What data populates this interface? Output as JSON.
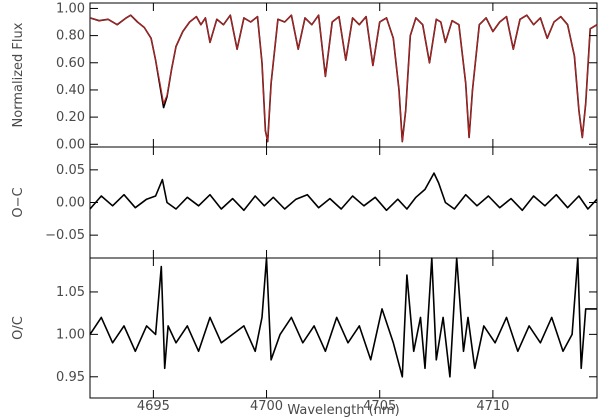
{
  "chart_data": [
    {
      "panel": "spectrum",
      "type": "line",
      "xlabel": "",
      "ylabel": "Normalized Flux",
      "xlim": [
        4692.2,
        4714.6
      ],
      "ylim": [
        -0.02,
        1.04
      ],
      "yticks": [
        0.0,
        0.2,
        0.4,
        0.6,
        0.8,
        1.0
      ],
      "ytick_labels": [
        "0.00",
        "0.20",
        "0.40",
        "0.60",
        "0.80",
        "1.00"
      ],
      "grid": false,
      "series": [
        {
          "color": "#000000",
          "note_only": false,
          "x": [
            4692.2,
            4692.6,
            4693.0,
            4693.4,
            4693.8,
            4694.0,
            4694.3,
            4694.6,
            4694.9,
            4695.1,
            4695.3,
            4695.45,
            4695.6,
            4695.8,
            4696.0,
            4696.3,
            4696.6,
            4696.9,
            4697.1,
            4697.3,
            4697.5,
            4697.8,
            4698.1,
            4698.4,
            4698.7,
            4699.0,
            4699.3,
            4699.6,
            4699.8,
            4699.95,
            4700.05,
            4700.2,
            4700.5,
            4700.8,
            4701.1,
            4701.4,
            4701.7,
            4702.0,
            4702.3,
            4702.6,
            4702.9,
            4703.2,
            4703.5,
            4703.8,
            4704.1,
            4704.4,
            4704.7,
            4705.0,
            4705.3,
            4705.6,
            4705.85,
            4706.0,
            4706.15,
            4706.35,
            4706.6,
            4706.9,
            4707.2,
            4707.5,
            4707.7,
            4707.9,
            4708.2,
            4708.5,
            4708.8,
            4708.95,
            4709.1,
            4709.4,
            4709.7,
            4710.0,
            4710.3,
            4710.6,
            4710.9,
            4711.2,
            4711.5,
            4711.8,
            4712.1,
            4712.4,
            4712.7,
            4713.0,
            4713.3,
            4713.6,
            4713.8,
            4713.95,
            4714.1,
            4714.3,
            4714.6
          ],
          "y": [
            0.93,
            0.91,
            0.92,
            0.88,
            0.93,
            0.95,
            0.9,
            0.86,
            0.78,
            0.62,
            0.42,
            0.27,
            0.35,
            0.55,
            0.72,
            0.83,
            0.9,
            0.94,
            0.88,
            0.93,
            0.75,
            0.92,
            0.88,
            0.95,
            0.7,
            0.93,
            0.9,
            0.94,
            0.6,
            0.1,
            0.02,
            0.45,
            0.92,
            0.9,
            0.95,
            0.7,
            0.93,
            0.88,
            0.95,
            0.5,
            0.9,
            0.94,
            0.62,
            0.93,
            0.88,
            0.94,
            0.58,
            0.9,
            0.93,
            0.78,
            0.4,
            0.02,
            0.25,
            0.8,
            0.93,
            0.88,
            0.6,
            0.92,
            0.9,
            0.75,
            0.91,
            0.88,
            0.45,
            0.05,
            0.4,
            0.88,
            0.93,
            0.83,
            0.9,
            0.94,
            0.7,
            0.92,
            0.95,
            0.88,
            0.93,
            0.78,
            0.9,
            0.94,
            0.88,
            0.65,
            0.25,
            0.05,
            0.3,
            0.85,
            0.88
          ]
        },
        {
          "color": "#b22222",
          "note_only": false,
          "x": [
            4692.2,
            4692.6,
            4693.0,
            4693.4,
            4693.8,
            4694.0,
            4694.3,
            4694.6,
            4694.9,
            4695.1,
            4695.3,
            4695.45,
            4695.6,
            4695.8,
            4696.0,
            4696.3,
            4696.6,
            4696.9,
            4697.1,
            4697.3,
            4697.5,
            4697.8,
            4698.1,
            4698.4,
            4698.7,
            4699.0,
            4699.3,
            4699.6,
            4699.8,
            4699.95,
            4700.05,
            4700.2,
            4700.5,
            4700.8,
            4701.1,
            4701.4,
            4701.7,
            4702.0,
            4702.3,
            4702.6,
            4702.9,
            4703.2,
            4703.5,
            4703.8,
            4704.1,
            4704.4,
            4704.7,
            4705.0,
            4705.3,
            4705.6,
            4705.85,
            4706.0,
            4706.15,
            4706.35,
            4706.6,
            4706.9,
            4707.2,
            4707.5,
            4707.7,
            4707.9,
            4708.2,
            4708.5,
            4708.8,
            4708.95,
            4709.1,
            4709.4,
            4709.7,
            4710.0,
            4710.3,
            4710.6,
            4710.9,
            4711.2,
            4711.5,
            4711.8,
            4712.1,
            4712.4,
            4712.7,
            4713.0,
            4713.3,
            4713.6,
            4713.8,
            4713.95,
            4714.1,
            4714.3,
            4714.6
          ],
          "y": [
            0.93,
            0.91,
            0.92,
            0.88,
            0.93,
            0.95,
            0.9,
            0.86,
            0.78,
            0.62,
            0.44,
            0.3,
            0.36,
            0.55,
            0.72,
            0.83,
            0.9,
            0.94,
            0.88,
            0.93,
            0.75,
            0.92,
            0.88,
            0.95,
            0.7,
            0.93,
            0.9,
            0.94,
            0.6,
            0.1,
            0.02,
            0.45,
            0.92,
            0.9,
            0.95,
            0.7,
            0.93,
            0.88,
            0.95,
            0.5,
            0.9,
            0.94,
            0.62,
            0.93,
            0.88,
            0.94,
            0.58,
            0.9,
            0.93,
            0.78,
            0.4,
            0.02,
            0.25,
            0.8,
            0.93,
            0.88,
            0.6,
            0.92,
            0.9,
            0.75,
            0.91,
            0.88,
            0.45,
            0.05,
            0.4,
            0.88,
            0.93,
            0.83,
            0.9,
            0.94,
            0.7,
            0.92,
            0.95,
            0.88,
            0.93,
            0.78,
            0.9,
            0.94,
            0.88,
            0.65,
            0.25,
            0.05,
            0.3,
            0.85,
            0.88
          ]
        }
      ]
    },
    {
      "panel": "residual",
      "type": "line",
      "xlabel": "",
      "ylabel": "O−C",
      "xlim": [
        4692.2,
        4714.6
      ],
      "ylim": [
        -0.085,
        0.085
      ],
      "yticks": [
        -0.05,
        0.0,
        0.05
      ],
      "ytick_labels": [
        "−0.05",
        "0.00",
        "0.05"
      ],
      "grid": false,
      "series": [
        {
          "color": "#000000",
          "x": [
            4692.2,
            4692.7,
            4693.2,
            4693.7,
            4694.2,
            4694.7,
            4695.1,
            4695.4,
            4695.6,
            4696.0,
            4696.5,
            4697.0,
            4697.5,
            4698.0,
            4698.5,
            4699.0,
            4699.5,
            4699.9,
            4700.3,
            4700.8,
            4701.3,
            4701.8,
            4702.3,
            4702.8,
            4703.3,
            4703.8,
            4704.3,
            4704.8,
            4705.3,
            4705.8,
            4706.2,
            4706.6,
            4707.0,
            4707.4,
            4707.6,
            4707.9,
            4708.3,
            4708.8,
            4709.3,
            4709.8,
            4710.3,
            4710.8,
            4711.3,
            4711.8,
            4712.3,
            4712.8,
            4713.3,
            4713.8,
            4714.2,
            4714.6
          ],
          "y": [
            -0.01,
            0.01,
            -0.005,
            0.012,
            -0.008,
            0.005,
            0.01,
            0.035,
            0.0,
            -0.01,
            0.008,
            -0.005,
            0.012,
            -0.01,
            0.006,
            -0.012,
            0.01,
            -0.005,
            0.008,
            -0.01,
            0.005,
            0.012,
            -0.008,
            0.006,
            -0.01,
            0.01,
            -0.005,
            0.008,
            -0.012,
            0.005,
            -0.01,
            0.008,
            0.02,
            0.045,
            0.03,
            0.0,
            -0.01,
            0.012,
            -0.005,
            0.01,
            -0.008,
            0.006,
            -0.012,
            0.01,
            -0.005,
            0.012,
            -0.008,
            0.01,
            -0.01,
            0.005
          ]
        }
      ]
    },
    {
      "panel": "ratio",
      "type": "line",
      "xlabel": "Wavelength (nm)",
      "ylabel": "O/C",
      "xlim": [
        4692.2,
        4714.6
      ],
      "ylim": [
        0.925,
        1.09
      ],
      "yticks": [
        0.95,
        1.0,
        1.05
      ],
      "ytick_labels": [
        "0.95",
        "1.00",
        "1.05"
      ],
      "xticks": [
        4695,
        4700,
        4705,
        4710
      ],
      "xtick_labels": [
        "4695",
        "4700",
        "4705",
        "4710"
      ],
      "grid": false,
      "series": [
        {
          "color": "#000000",
          "x": [
            4692.2,
            4692.7,
            4693.2,
            4693.7,
            4694.2,
            4694.7,
            4695.1,
            4695.35,
            4695.5,
            4695.65,
            4696.0,
            4696.5,
            4697.0,
            4697.5,
            4698.0,
            4698.5,
            4699.0,
            4699.5,
            4699.8,
            4700.0,
            4700.2,
            4700.6,
            4701.1,
            4701.6,
            4702.1,
            4702.6,
            4703.1,
            4703.6,
            4704.1,
            4704.6,
            4705.1,
            4705.6,
            4706.0,
            4706.2,
            4706.5,
            4706.8,
            4707.0,
            4707.3,
            4707.5,
            4707.8,
            4708.1,
            4708.4,
            4708.7,
            4708.9,
            4709.2,
            4709.6,
            4710.1,
            4710.6,
            4711.1,
            4711.6,
            4712.1,
            4712.6,
            4713.1,
            4713.5,
            4713.75,
            4713.9,
            4714.1,
            4714.6
          ],
          "y": [
            1.0,
            1.02,
            0.99,
            1.01,
            0.98,
            1.01,
            1.0,
            1.08,
            0.96,
            1.01,
            0.99,
            1.01,
            0.98,
            1.02,
            0.99,
            1.0,
            1.01,
            0.98,
            1.02,
            1.09,
            0.97,
            1.0,
            1.02,
            0.99,
            1.01,
            0.98,
            1.02,
            0.99,
            1.01,
            0.97,
            1.03,
            0.99,
            0.95,
            1.07,
            0.98,
            1.02,
            0.96,
            1.09,
            0.97,
            1.02,
            0.95,
            1.09,
            0.98,
            1.02,
            0.96,
            1.01,
            0.99,
            1.02,
            0.98,
            1.01,
            0.99,
            1.02,
            0.98,
            1.0,
            1.09,
            0.96,
            1.03,
            1.03
          ]
        }
      ]
    }
  ]
}
